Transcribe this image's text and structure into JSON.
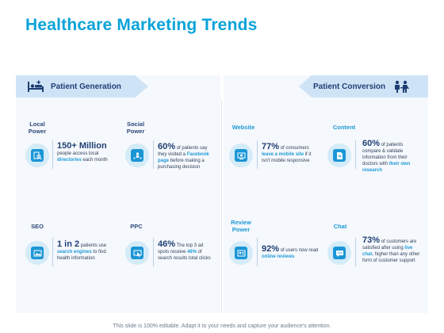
{
  "title": "Healthcare Marketing Trends",
  "banners": {
    "left": "Patient Generation",
    "right": "Patient Conversion"
  },
  "items": {
    "local_power": {
      "label_line1": "Local",
      "label_line2": "Power",
      "big": "150+ Million",
      "text_a": "people access local",
      "highlight": "directories",
      "text_b": " each month"
    },
    "social_power": {
      "label_line1": "Social",
      "label_line2": "Power",
      "pct": "60%",
      "text_a": " of patients say they visited a ",
      "highlight": "Facebook page",
      "text_b": " before making a purchasing decision"
    },
    "website": {
      "label_line1": "Website",
      "pct": "77%",
      "text_a": " of consumers ",
      "highlight": "leave a mobile site",
      "text_b": " if it isn't mobile responsive"
    },
    "content": {
      "label_line1": "Content",
      "pct": "60%",
      "text_a": " of patients compare & validate information from their doctors with ",
      "highlight": "their own research",
      "text_b": ""
    },
    "seo": {
      "label_line1": "SEO",
      "big": "1 in 2",
      "text_a": " patients use ",
      "highlight": "search engines",
      "text_b": " to find health information"
    },
    "ppc": {
      "label_line1": "PPC",
      "pct": "46%",
      "text_a": " The top 3 ad spots receive ",
      "highlight": "46%",
      "text_b": " of search results total clicks"
    },
    "review_power": {
      "label_line1": "Review",
      "label_line2": "Power",
      "pct": "92%",
      "text_a": " of users now read ",
      "highlight": "online reviews",
      "text_b": ""
    },
    "chat": {
      "label_line1": "Chat",
      "pct": "73%",
      "text_a": " of customers are satisfied after using ",
      "highlight": "live chat",
      "text_b": ", higher than any other form of customer support"
    }
  },
  "footer": "This slide is 100% editable. Adapt it to your needs and capture your audience's attention.",
  "colors": {
    "accent": "#0aa3d9",
    "navy": "#1f3f73",
    "icon_blue": "#1a96d6",
    "circle_bg": "#d4ebf8",
    "banner_bg": "#cfe3f7",
    "panel_bg": "#f5f8fc"
  },
  "icons": {
    "patient_generation": "hospital-bed-icon",
    "patient_conversion": "doctor-patient-icon",
    "local_power": "directory-search-icon",
    "social_power": "social-network-icon",
    "website": "website-icon",
    "content": "document-icon",
    "seo": "seo-image-icon",
    "ppc": "pay-per-click-icon",
    "review_power": "review-icon",
    "chat": "chat-bubble-icon"
  }
}
